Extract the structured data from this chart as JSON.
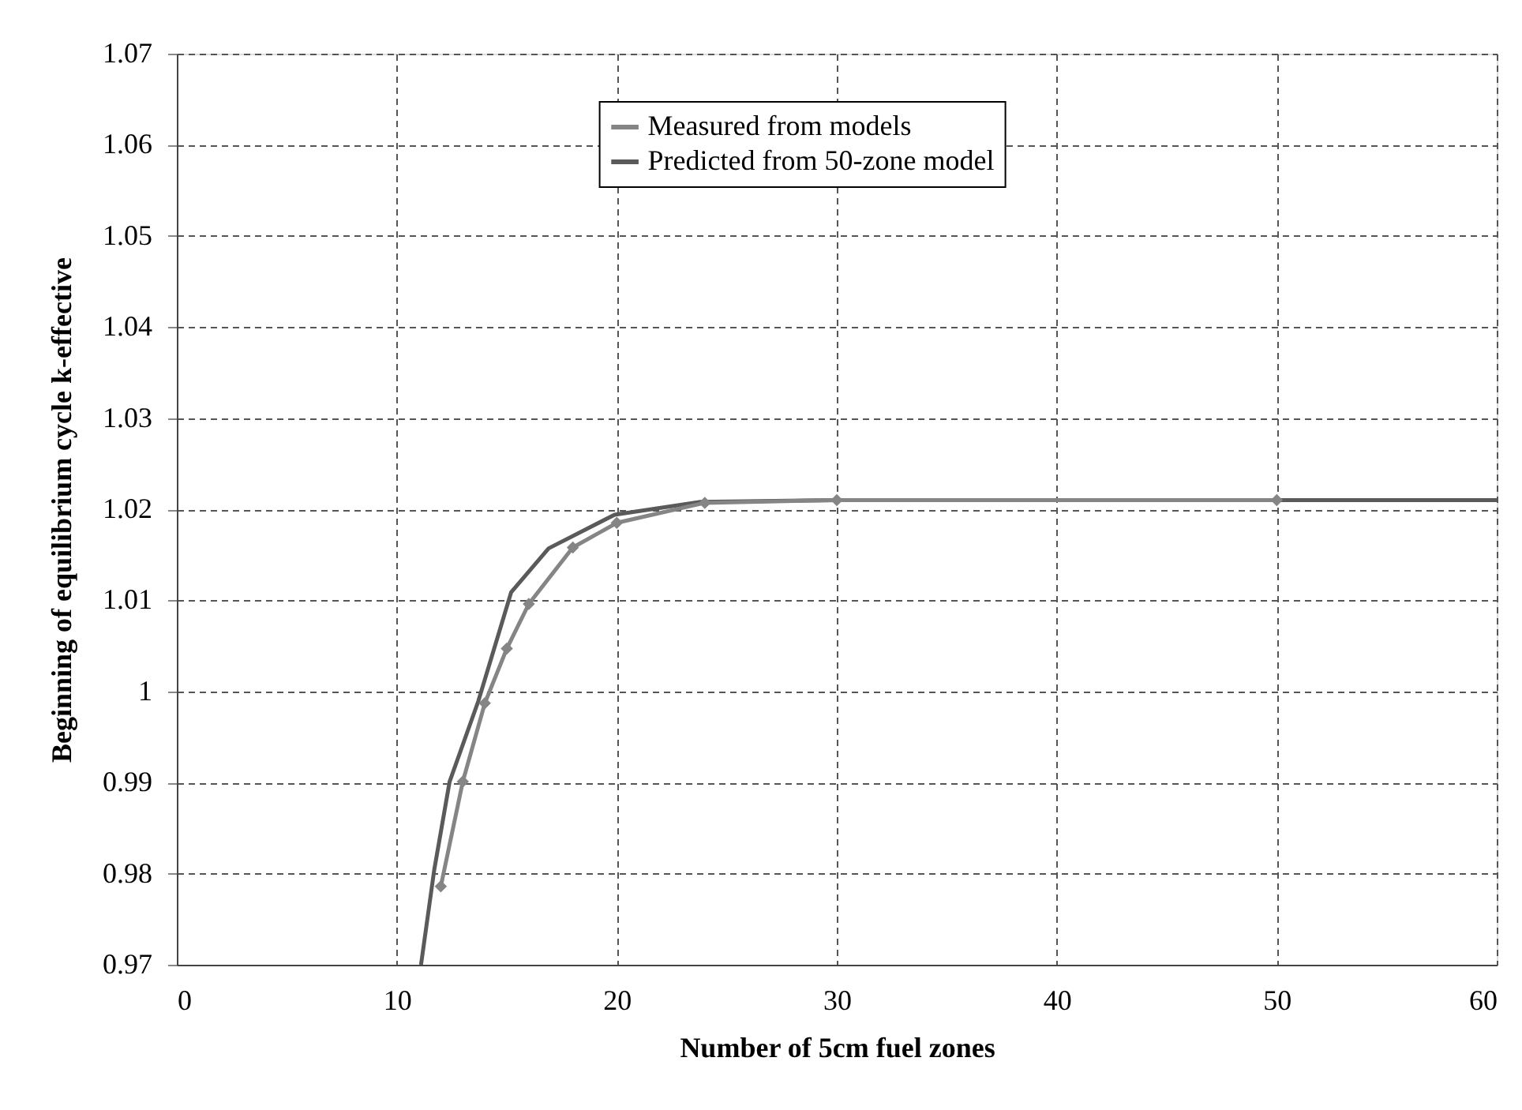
{
  "chart_data": {
    "type": "line",
    "xlabel": "Number of 5cm fuel zones",
    "ylabel": "Beginning of equilibrium cycle k-effective",
    "xlim": [
      0,
      60
    ],
    "xticks": [
      0,
      10,
      20,
      30,
      40,
      50,
      60
    ],
    "ylim": [
      0.97,
      1.07
    ],
    "yticks": [
      0.97,
      0.98,
      0.99,
      1,
      1.01,
      1.02,
      1.03,
      1.04,
      1.05,
      1.06,
      1.07
    ],
    "grid": true,
    "legend": "top",
    "series": [
      {
        "name": "Measured from models",
        "color": "#858585",
        "marker": "diamond",
        "x": [
          12,
          13,
          14,
          15,
          16,
          18,
          20,
          24,
          30,
          50
        ],
        "values": [
          0.9786,
          0.9901,
          0.9987,
          1.0047,
          1.0096,
          1.0158,
          1.0185,
          1.0207,
          1.021,
          1.021
        ]
      },
      {
        "name": "Predicted from 50-zone model",
        "color": "#5a5a5a",
        "marker": "none",
        "x": [
          11.1,
          11.7,
          12.4,
          13.7,
          15.2,
          16.9,
          19.9,
          23.8,
          30,
          40,
          50,
          60
        ],
        "values": [
          0.97,
          0.9804,
          0.9901,
          0.9989,
          1.0109,
          1.0157,
          1.0194,
          1.0208,
          1.021,
          1.021,
          1.021,
          1.021
        ]
      }
    ]
  }
}
